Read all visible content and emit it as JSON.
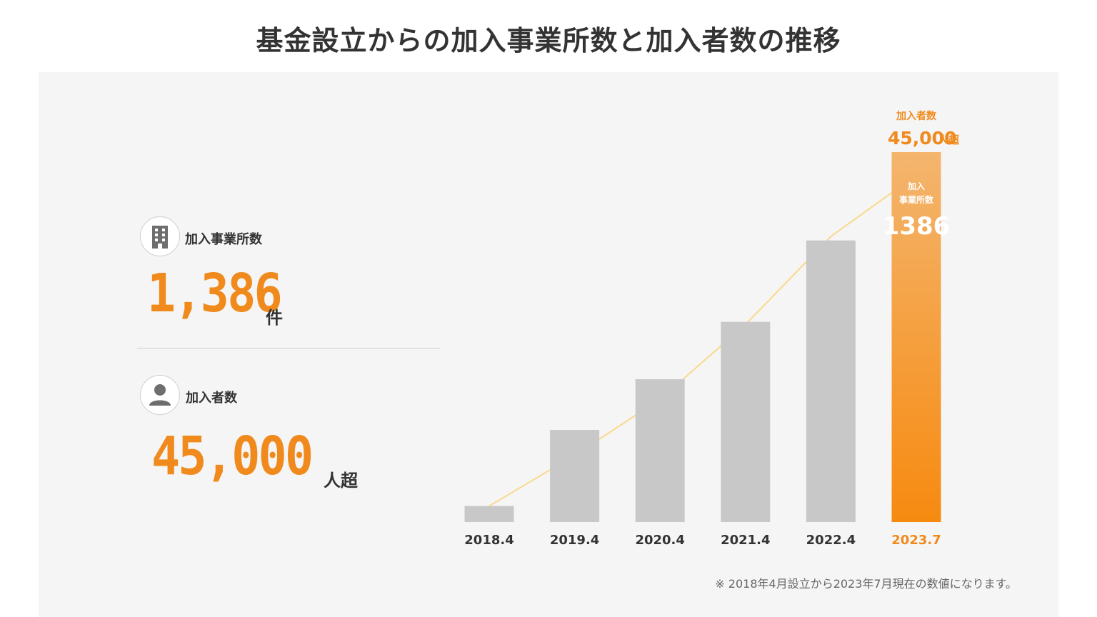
{
  "title": "基金設立からの加入事業所数と加入者数の推移",
  "stats": {
    "offices": {
      "label": "加入事業所数",
      "value": "1,386",
      "unit": "件",
      "icon": "building-icon"
    },
    "members": {
      "label": "加入者数",
      "value": "45,000",
      "unit": "人超",
      "icon": "person-icon"
    }
  },
  "chart_data": {
    "type": "bar",
    "categories": [
      "2018.4",
      "2019.4",
      "2020.4",
      "2021.4",
      "2022.4",
      "2023.7"
    ],
    "series": [
      {
        "values": [
          60,
          345,
          535,
          750,
          1055,
          1386
        ]
      }
    ],
    "line": {
      "values": [
        60,
        250,
        460,
        740,
        1070,
        1300
      ]
    },
    "ylim": [
      0,
      1386
    ],
    "highlight": {
      "category": "2023.7",
      "members_label": "加入者数",
      "members_value": "45,000",
      "members_unit": "人超",
      "offices_label_1": "加入",
      "offices_label_2": "事業所数",
      "offices_value": "1386"
    },
    "colors": {
      "bar": "#c8c8c8",
      "highlight_top": "#f4b56e",
      "highlight_bottom": "#f68a10",
      "line": "#f9d98a",
      "accent": "#f08a1c"
    },
    "grid": false
  },
  "footnote": "※ 2018年4月設立から2023年7月現在の数値になります。"
}
